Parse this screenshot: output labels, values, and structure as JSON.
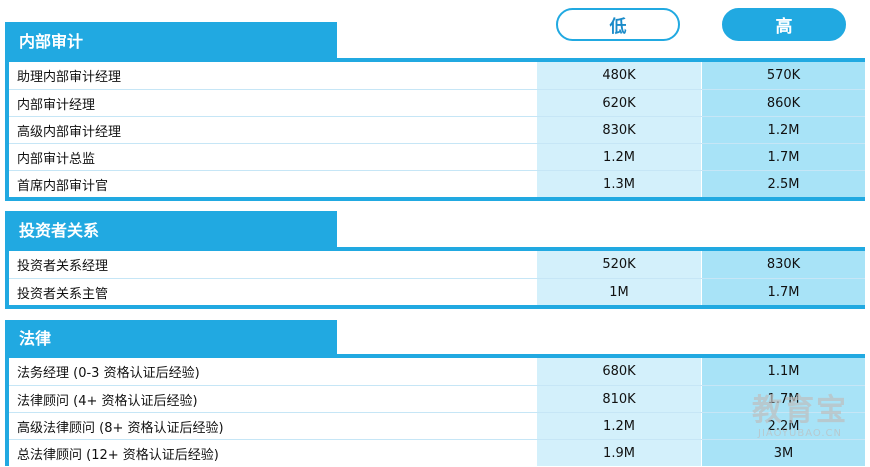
{
  "columns": {
    "low": "低",
    "high": "高"
  },
  "sections": [
    {
      "title": "内部审计",
      "rows": [
        {
          "name": "助理内部审计经理",
          "low": "480K",
          "high": "570K"
        },
        {
          "name": "内部审计经理",
          "low": "620K",
          "high": "860K"
        },
        {
          "name": "高级内部审计经理",
          "low": "830K",
          "high": "1.2M"
        },
        {
          "name": "内部审计总监",
          "low": "1.2M",
          "high": "1.7M"
        },
        {
          "name": "首席内部审计官",
          "low": "1.3M",
          "high": "2.5M"
        }
      ]
    },
    {
      "title": "投资者关系",
      "rows": [
        {
          "name": "投资者关系经理",
          "low": "520K",
          "high": "830K"
        },
        {
          "name": "投资者关系主管",
          "low": "1M",
          "high": "1.7M"
        }
      ]
    },
    {
      "title": "法律",
      "rows": [
        {
          "name": "法务经理 (0-3 资格认证后经验)",
          "low": "680K",
          "high": "1.1M"
        },
        {
          "name": "法律顾问 (4+ 资格认证后经验)",
          "low": "810K",
          "high": "1.7M"
        },
        {
          "name": "高级法律顾问 (8+ 资格认证后经验)",
          "low": "1.2M",
          "high": "2.2M"
        },
        {
          "name": "总法律顾问 (12+ 资格认证后经验)",
          "low": "1.9M",
          "high": "3M"
        }
      ]
    }
  ],
  "watermark": {
    "logo": "教育宝",
    "url": "JIAOYUBAO.CN"
  }
}
